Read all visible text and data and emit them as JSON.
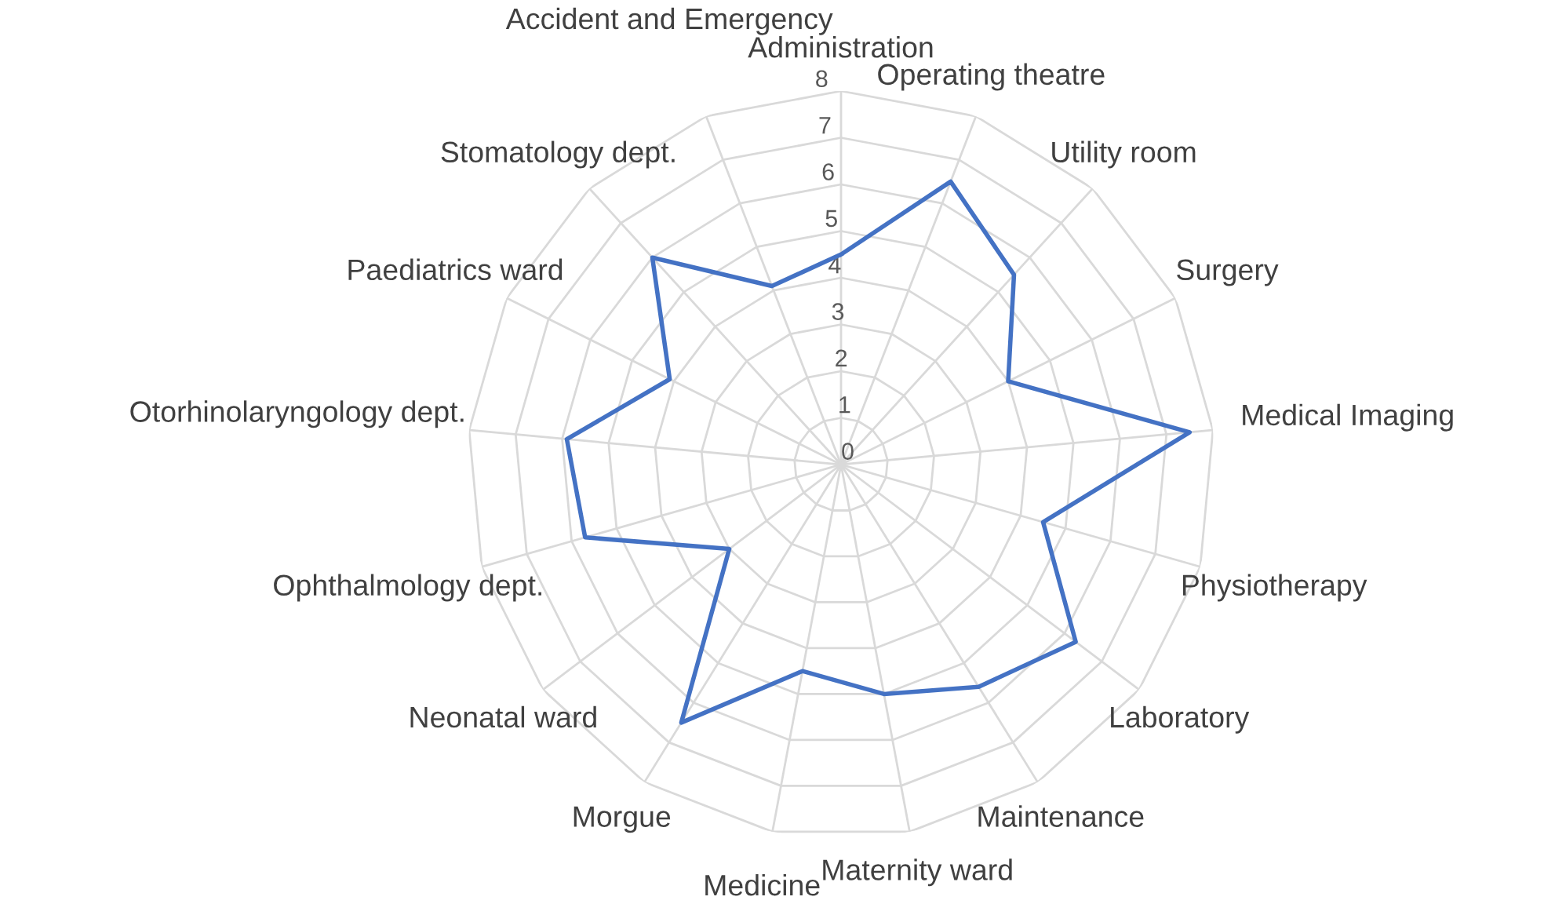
{
  "chart_data": {
    "type": "radar",
    "categories": [
      "Administration",
      "Operating theatre",
      "Utility room",
      "Surgery",
      "Medical Imaging",
      "Physiotherapy",
      "Laboratory",
      "Maintenance",
      "Maternity ward",
      "Medicine",
      "Morgue",
      "Neonatal ward",
      "Ophthalmology dept.",
      "Otorhinolaryngology dept.",
      "Paediatrics ward",
      "Stomatology dept.",
      "Accident and Emergency"
    ],
    "series": [
      {
        "color": "#4472c4",
        "values": [
          4.5,
          6.5,
          5.5,
          4,
          7.5,
          4.5,
          6.3,
          5.6,
          5,
          4.5,
          6.5,
          3,
          5.7,
          5.9,
          4.1,
          6,
          4.1
        ]
      }
    ],
    "ylim": [
      0,
      8
    ],
    "yticks": [
      0,
      1,
      2,
      3,
      4,
      5,
      6,
      7,
      8
    ],
    "grid": true,
    "marker": "none",
    "line_style": "solid"
  }
}
